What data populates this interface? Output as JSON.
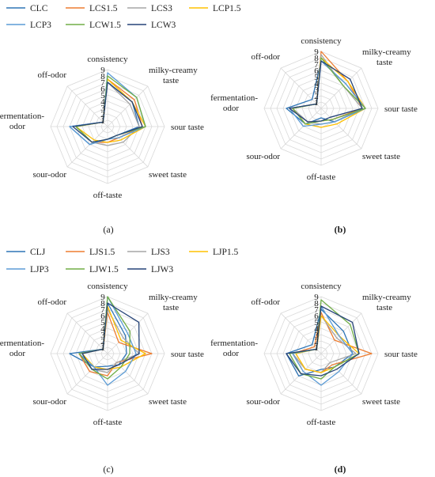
{
  "colors": [
    "#2e75b6",
    "#ed7d31",
    "#a5a5a5",
    "#ffc000",
    "#5b9bd5",
    "#70ad47",
    "#264478"
  ],
  "axis_labels": [
    "consistency",
    "milky-creamy taste",
    "sour taste",
    "sweet taste",
    "off-taste",
    "sour-odor",
    "fermentation-odor",
    "off-odor"
  ],
  "chart_data": [
    {
      "type": "radar",
      "panel_label": "a",
      "axes": [
        "consistency",
        "milky-creamy taste",
        "sour taste",
        "sweet taste",
        "off-taste",
        "sour-odor",
        "fermentation-odor",
        "off-odor"
      ],
      "ticks": [
        "1",
        "2",
        "3",
        "4",
        "5",
        "6",
        "7",
        "8",
        "9"
      ],
      "rlim": [
        0,
        9
      ],
      "legend": "top",
      "series": [
        {
          "name": "CLC",
          "values": [
            7.0,
            5.5,
            5.0,
            2.0,
            2.0,
            4.0,
            6.0,
            1.0
          ]
        },
        {
          "name": "LCS1.5",
          "values": [
            7.5,
            6.0,
            5.5,
            2.5,
            2.5,
            3.5,
            5.0,
            1.0
          ]
        },
        {
          "name": "LCS3",
          "values": [
            7.0,
            5.0,
            5.0,
            3.5,
            3.0,
            3.5,
            5.0,
            1.0
          ]
        },
        {
          "name": "LCP1.5",
          "values": [
            7.5,
            5.5,
            6.0,
            3.0,
            2.5,
            3.0,
            5.0,
            1.0
          ]
        },
        {
          "name": "LCP3",
          "values": [
            8.5,
            6.5,
            6.0,
            2.5,
            2.0,
            4.0,
            6.0,
            1.0
          ]
        },
        {
          "name": "LCW1.5",
          "values": [
            8.0,
            6.5,
            6.0,
            2.0,
            2.0,
            3.5,
            5.0,
            1.0
          ]
        },
        {
          "name": "LCW3",
          "values": [
            7.0,
            5.5,
            5.5,
            2.0,
            2.0,
            3.5,
            5.5,
            1.0
          ]
        }
      ]
    },
    {
      "type": "radar",
      "panel_label": "b",
      "axes": [
        "consistency",
        "milky-creamy taste",
        "sour taste",
        "sweet taste",
        "off-taste",
        "sour-odor",
        "fermentation-odor",
        "off-odor"
      ],
      "ticks": [
        "1",
        "2",
        "3",
        "4",
        "5",
        "6",
        "7",
        "8",
        "9"
      ],
      "rlim": [
        0,
        9
      ],
      "legend": "none",
      "series": [
        {
          "name": "CLC",
          "values": [
            7.5,
            5.5,
            7.0,
            3.0,
            1.5,
            3.5,
            5.5,
            2.0
          ]
        },
        {
          "name": "LCS1.5",
          "values": [
            9.0,
            6.0,
            6.5,
            2.5,
            2.0,
            3.0,
            5.0,
            1.0
          ]
        },
        {
          "name": "LCS3",
          "values": [
            8.5,
            5.0,
            6.5,
            3.0,
            2.5,
            3.0,
            4.5,
            1.0
          ]
        },
        {
          "name": "LCP1.5",
          "values": [
            8.0,
            6.0,
            7.0,
            3.5,
            3.0,
            3.5,
            4.5,
            1.0
          ]
        },
        {
          "name": "LCP3",
          "values": [
            7.5,
            5.5,
            7.0,
            3.0,
            2.5,
            4.0,
            5.0,
            1.0
          ]
        },
        {
          "name": "LCW1.5",
          "values": [
            8.0,
            5.0,
            7.0,
            2.5,
            2.0,
            3.5,
            4.5,
            1.0
          ]
        },
        {
          "name": "LCW3",
          "values": [
            7.5,
            6.5,
            6.5,
            2.0,
            2.0,
            3.0,
            5.0,
            1.0
          ]
        }
      ]
    },
    {
      "type": "radar",
      "panel_label": "c",
      "axes": [
        "consistency",
        "milky-creamy taste",
        "sour taste",
        "sweet taste",
        "off-taste",
        "sour-odor",
        "fermentation-odor",
        "off-odor"
      ],
      "ticks": [
        "1",
        "2",
        "3",
        "4",
        "5",
        "6",
        "7",
        "8",
        "9"
      ],
      "rlim": [
        0,
        9
      ],
      "legend": "top",
      "series": [
        {
          "name": "CLJ",
          "values": [
            8.0,
            4.0,
            3.0,
            2.5,
            2.0,
            3.0,
            6.0,
            1.0
          ]
        },
        {
          "name": "LJS1.5",
          "values": [
            6.5,
            2.5,
            7.0,
            2.0,
            3.5,
            4.0,
            4.5,
            1.0
          ]
        },
        {
          "name": "LJS3",
          "values": [
            7.0,
            3.5,
            5.0,
            2.0,
            3.0,
            3.5,
            4.0,
            1.0
          ]
        },
        {
          "name": "LJP1.5",
          "values": [
            7.5,
            3.0,
            6.0,
            3.0,
            2.5,
            3.0,
            4.0,
            1.0
          ]
        },
        {
          "name": "LJP3",
          "values": [
            9.0,
            4.5,
            4.5,
            4.0,
            5.0,
            3.0,
            4.5,
            1.0
          ]
        },
        {
          "name": "LJW1.5",
          "values": [
            9.0,
            5.0,
            3.5,
            3.0,
            4.0,
            3.5,
            4.5,
            1.0
          ]
        },
        {
          "name": "LJW3",
          "values": [
            8.0,
            7.0,
            5.0,
            2.5,
            2.5,
            3.5,
            4.0,
            1.0
          ]
        }
      ]
    },
    {
      "type": "radar",
      "panel_label": "d",
      "axes": [
        "consistency",
        "milky-creamy taste",
        "sour taste",
        "sweet taste",
        "off-taste",
        "sour-odor",
        "fermentation-odor",
        "off-odor"
      ],
      "ticks": [
        "1",
        "2",
        "3",
        "4",
        "5",
        "6",
        "7",
        "8",
        "9"
      ],
      "rlim": [
        0,
        9
      ],
      "legend": "none",
      "series": [
        {
          "name": "CLJ",
          "values": [
            7.0,
            5.0,
            5.0,
            3.0,
            2.5,
            5.0,
            5.5,
            2.0
          ]
        },
        {
          "name": "LJS1.5",
          "values": [
            6.5,
            3.0,
            8.0,
            2.5,
            3.0,
            3.5,
            4.5,
            1.5
          ]
        },
        {
          "name": "LJS3",
          "values": [
            6.0,
            3.5,
            5.5,
            2.0,
            3.0,
            3.5,
            4.5,
            1.0
          ]
        },
        {
          "name": "LJP1.5",
          "values": [
            6.0,
            4.0,
            6.0,
            3.0,
            3.0,
            3.5,
            4.0,
            1.0
          ]
        },
        {
          "name": "LJP3",
          "values": [
            7.5,
            4.0,
            5.0,
            4.0,
            5.0,
            4.0,
            4.5,
            1.0
          ]
        },
        {
          "name": "LJW1.5",
          "values": [
            8.5,
            6.5,
            6.0,
            3.0,
            4.0,
            4.5,
            5.0,
            1.0
          ]
        },
        {
          "name": "LJW3",
          "values": [
            7.5,
            7.0,
            6.0,
            3.5,
            3.5,
            4.5,
            5.5,
            1.0
          ]
        }
      ]
    }
  ]
}
